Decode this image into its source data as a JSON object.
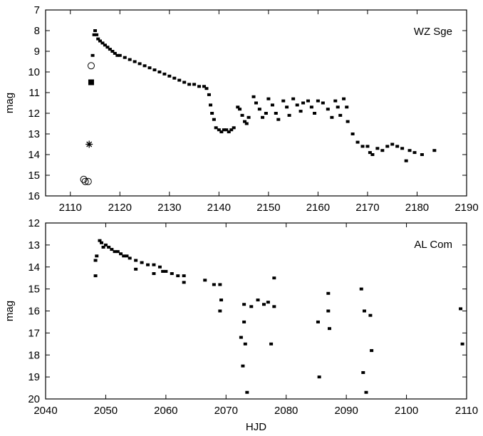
{
  "chart_data": [
    {
      "type": "scatter",
      "title": "",
      "annotation": "WZ Sge",
      "xlabel": "",
      "ylabel": "mag",
      "xlim": [
        2105,
        2190
      ],
      "ylim": [
        16,
        7
      ],
      "y_inverted": true,
      "grid": false,
      "xticks": [
        "2110",
        "2120",
        "2130",
        "2140",
        "2150",
        "2160",
        "2170",
        "2180",
        "2190"
      ],
      "yticks": [
        "7",
        "8",
        "9",
        "10",
        "11",
        "12",
        "13",
        "14",
        "15",
        "16"
      ],
      "series": [
        {
          "marker": "dot",
          "x": [
            2114.5,
            2114.8,
            2115.0,
            2115.3,
            2115.6,
            2116.0,
            2116.5,
            2117.0,
            2117.5,
            2118.0,
            2118.5,
            2119.0,
            2119.5,
            2120.0,
            2121.0,
            2122.0,
            2123.0,
            2124.0,
            2125.0,
            2126.0,
            2127.0,
            2128.0,
            2129.0,
            2130.0,
            2131.0,
            2132.0,
            2133.0,
            2134.0,
            2135.0,
            2136.0,
            2137.0,
            2137.5,
            2138.0,
            2138.3,
            2138.6,
            2139.0,
            2139.4,
            2140.0,
            2140.5,
            2141.0,
            2141.5,
            2142.0,
            2142.5,
            2143.0,
            2143.8,
            2144.2,
            2144.7,
            2145.2,
            2145.6,
            2146.0,
            2147.0,
            2147.5,
            2148.2,
            2148.8,
            2149.5,
            2150.0,
            2150.8,
            2151.5,
            2152.0,
            2153.0,
            2153.7,
            2154.2,
            2155.0,
            2155.8,
            2156.5,
            2157.0,
            2158.0,
            2158.7,
            2159.3,
            2160.0,
            2161.0,
            2162.0,
            2162.8,
            2163.5,
            2164.0,
            2164.5,
            2165.2,
            2165.8,
            2166.0,
            2167.0,
            2168.0,
            2169.0,
            2170.0,
            2170.5,
            2171.0,
            2172.0,
            2173.0,
            2174.0,
            2175.0,
            2176.0,
            2177.0,
            2177.8,
            2178.5,
            2179.5,
            2181.0,
            2183.5
          ],
          "y": [
            9.2,
            8.2,
            8.0,
            8.2,
            8.4,
            8.5,
            8.6,
            8.7,
            8.8,
            8.9,
            9.0,
            9.1,
            9.2,
            9.2,
            9.3,
            9.4,
            9.5,
            9.6,
            9.7,
            9.8,
            9.9,
            10.0,
            10.1,
            10.2,
            10.3,
            10.4,
            10.5,
            10.6,
            10.6,
            10.7,
            10.7,
            10.8,
            11.1,
            11.6,
            12.0,
            12.3,
            12.7,
            12.8,
            12.9,
            12.8,
            12.8,
            12.9,
            12.8,
            12.7,
            11.7,
            11.8,
            12.1,
            12.4,
            12.5,
            12.2,
            11.2,
            11.5,
            11.8,
            12.2,
            12.0,
            11.3,
            11.6,
            12.0,
            12.3,
            11.4,
            11.7,
            12.1,
            11.3,
            11.6,
            11.9,
            11.5,
            11.4,
            11.7,
            12.0,
            11.4,
            11.5,
            11.8,
            12.2,
            11.4,
            11.7,
            12.1,
            11.3,
            11.7,
            12.4,
            13.0,
            13.4,
            13.6,
            13.6,
            13.9,
            14.0,
            13.7,
            13.8,
            13.6,
            13.5,
            13.6,
            13.7,
            14.3,
            13.8,
            13.9,
            14.0,
            13.8
          ]
        },
        {
          "marker": "open-circle",
          "x": [
            2112.7,
            2113.0,
            2113.6,
            2114.2
          ],
          "y": [
            15.2,
            15.3,
            15.3,
            9.7
          ]
        },
        {
          "marker": "filled-square",
          "x": [
            2114.2
          ],
          "y": [
            10.5
          ]
        },
        {
          "marker": "asterisk",
          "x": [
            2113.8
          ],
          "y": [
            13.5
          ]
        }
      ]
    },
    {
      "type": "scatter",
      "title": "",
      "annotation": "AL Com",
      "xlabel": "HJD",
      "ylabel": "mag",
      "xlim": [
        2040,
        2110
      ],
      "ylim": [
        20,
        12
      ],
      "y_inverted": true,
      "grid": false,
      "xticks": [
        "2040",
        "2050",
        "2060",
        "2070",
        "2080",
        "2090",
        "2100",
        "2110"
      ],
      "yticks": [
        "12",
        "13",
        "14",
        "15",
        "16",
        "17",
        "18",
        "19",
        "20"
      ],
      "series": [
        {
          "marker": "dot",
          "x": [
            2048.3,
            2048.3,
            2048.5,
            2049.0,
            2049.3,
            2049.6,
            2050.0,
            2050.5,
            2051.0,
            2051.5,
            2052.0,
            2052.5,
            2053.0,
            2053.5,
            2054.0,
            2055.0,
            2055.0,
            2056.0,
            2057.0,
            2058.0,
            2058.0,
            2059.0,
            2059.5,
            2060.0,
            2061.0,
            2062.0,
            2063.0,
            2063.0,
            2066.5,
            2068.0,
            2069.0,
            2069.2,
            2069.0,
            2072.5,
            2072.8,
            2073.0,
            2073.2,
            2073.5,
            2073.0,
            2074.2,
            2075.3,
            2076.3,
            2077.0,
            2077.5,
            2078.0,
            2078.0,
            2085.3,
            2085.5,
            2087.0,
            2087.2,
            2087.0,
            2092.5,
            2092.8,
            2093.0,
            2093.3,
            2094.0,
            2094.2,
            2109.0,
            2109.3
          ],
          "y": [
            13.7,
            14.4,
            13.5,
            12.8,
            12.9,
            13.1,
            13.0,
            13.1,
            13.2,
            13.3,
            13.3,
            13.4,
            13.5,
            13.5,
            13.6,
            13.7,
            14.1,
            13.8,
            13.9,
            13.9,
            14.3,
            14.0,
            14.2,
            14.2,
            14.3,
            14.4,
            14.4,
            14.7,
            14.6,
            14.8,
            14.8,
            15.5,
            16.0,
            17.2,
            18.5,
            16.5,
            17.5,
            19.7,
            15.7,
            15.8,
            15.5,
            15.7,
            15.6,
            17.5,
            15.8,
            14.5,
            16.5,
            19.0,
            16.0,
            16.8,
            15.2,
            15.0,
            18.8,
            16.0,
            19.7,
            16.2,
            17.8,
            15.9,
            17.5
          ]
        }
      ]
    }
  ]
}
